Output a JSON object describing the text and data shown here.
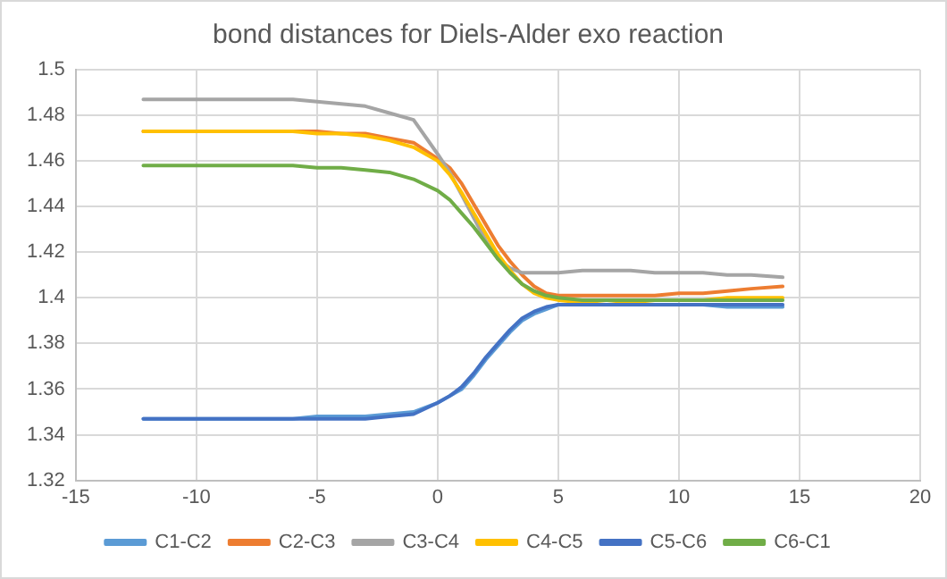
{
  "chart_data": {
    "type": "line",
    "title": "bond distances for Diels-Alder exo reaction",
    "x": [
      -12.2,
      -8,
      -6,
      -5,
      -4,
      -3,
      -2,
      -1,
      0,
      0.5,
      1,
      1.5,
      2,
      2.5,
      3,
      3.5,
      4,
      4.5,
      5,
      6,
      7,
      8,
      9,
      10,
      11,
      12,
      13,
      14.3
    ],
    "series": [
      {
        "name": "C1-C2",
        "color": "#5b9bd5",
        "values": [
          1.347,
          1.347,
          1.347,
          1.348,
          1.348,
          1.348,
          1.349,
          1.35,
          1.354,
          1.357,
          1.36,
          1.366,
          1.373,
          1.379,
          1.385,
          1.39,
          1.393,
          1.395,
          1.397,
          1.397,
          1.397,
          1.397,
          1.397,
          1.397,
          1.397,
          1.396,
          1.396,
          1.396
        ]
      },
      {
        "name": "C2-C3",
        "color": "#ed7d31",
        "values": [
          1.473,
          1.473,
          1.473,
          1.473,
          1.472,
          1.472,
          1.47,
          1.468,
          1.461,
          1.457,
          1.45,
          1.441,
          1.432,
          1.423,
          1.416,
          1.41,
          1.405,
          1.402,
          1.401,
          1.401,
          1.401,
          1.401,
          1.401,
          1.402,
          1.402,
          1.403,
          1.404,
          1.405
        ]
      },
      {
        "name": "C3-C4",
        "color": "#a5a5a5",
        "values": [
          1.487,
          1.487,
          1.487,
          1.486,
          1.485,
          1.484,
          1.481,
          1.478,
          1.463,
          1.455,
          1.445,
          1.435,
          1.425,
          1.417,
          1.413,
          1.411,
          1.411,
          1.411,
          1.411,
          1.412,
          1.412,
          1.412,
          1.411,
          1.411,
          1.411,
          1.41,
          1.41,
          1.409
        ]
      },
      {
        "name": "C4-C5",
        "color": "#ffc000",
        "values": [
          1.473,
          1.473,
          1.473,
          1.472,
          1.472,
          1.471,
          1.469,
          1.466,
          1.46,
          1.454,
          1.446,
          1.437,
          1.428,
          1.419,
          1.412,
          1.406,
          1.402,
          1.4,
          1.399,
          1.398,
          1.397,
          1.398,
          1.399,
          1.399,
          1.399,
          1.4,
          1.4,
          1.4
        ]
      },
      {
        "name": "C5-C6",
        "color": "#4472c4",
        "values": [
          1.347,
          1.347,
          1.347,
          1.347,
          1.347,
          1.347,
          1.348,
          1.349,
          1.354,
          1.357,
          1.361,
          1.367,
          1.374,
          1.38,
          1.386,
          1.391,
          1.394,
          1.396,
          1.397,
          1.397,
          1.397,
          1.397,
          1.397,
          1.397,
          1.397,
          1.397,
          1.397,
          1.397
        ]
      },
      {
        "name": "C6-C1",
        "color": "#70ad47",
        "values": [
          1.458,
          1.458,
          1.458,
          1.457,
          1.457,
          1.456,
          1.455,
          1.452,
          1.447,
          1.443,
          1.437,
          1.431,
          1.424,
          1.417,
          1.411,
          1.406,
          1.403,
          1.401,
          1.4,
          1.399,
          1.399,
          1.399,
          1.399,
          1.399,
          1.399,
          1.399,
          1.399,
          1.399
        ]
      }
    ],
    "xlim": [
      -15,
      20
    ],
    "xticks": [
      -15,
      -10,
      -5,
      0,
      5,
      10,
      15,
      20
    ],
    "ylim": [
      1.32,
      1.5
    ],
    "yticks": [
      1.32,
      1.34,
      1.36,
      1.38,
      1.4,
      1.42,
      1.44,
      1.46,
      1.48,
      1.5
    ],
    "grid": true,
    "legend": "bottom",
    "marker": "none",
    "line_style": "solid"
  }
}
